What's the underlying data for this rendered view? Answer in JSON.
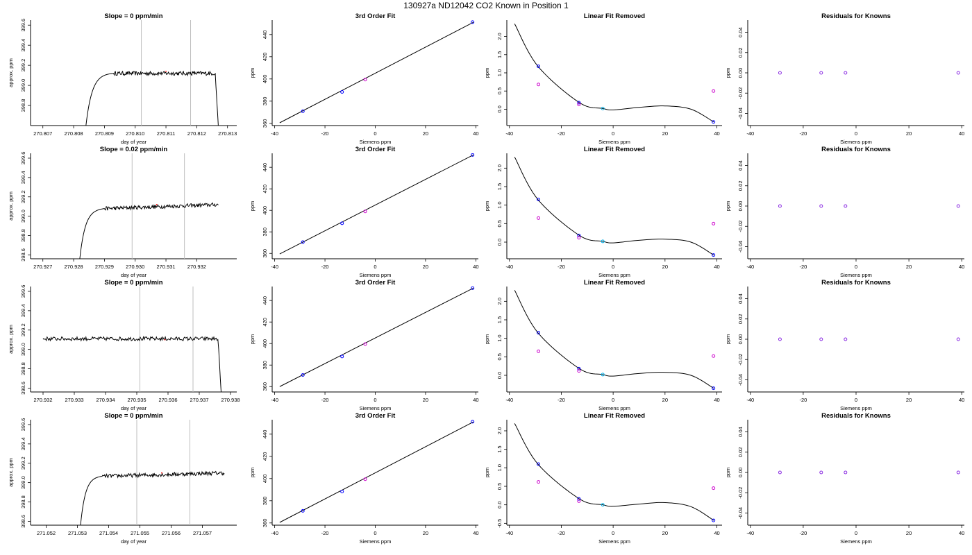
{
  "page_title": "130927a     ND12042   CO2 Known in Position  1",
  "colors": {
    "line": "#000000",
    "vline": "#bebebe",
    "blue": "#0000ff",
    "magenta": "#cc00cc",
    "cyan": "#00b0e8",
    "purple": "#8a2be2",
    "red": "#ff0000"
  },
  "chart_data": [
    {
      "type": "line",
      "row": 0,
      "title": "Slope =  0  ppm/min",
      "xlabel": "day of year",
      "ylabel": "approx. ppm",
      "xlim": [
        270.8066,
        270.8133
      ],
      "ylim": [
        398.6,
        399.65
      ],
      "xticks": [
        "270.807",
        "270.808",
        "270.809",
        "270.810",
        "270.811",
        "270.812",
        "270.813"
      ],
      "yticks": [
        "398.8",
        "399.0",
        "399.2",
        "399.4",
        "399.6"
      ],
      "vlines": [
        270.8102,
        270.8118
      ],
      "red_point": [
        270.811,
        399.14
      ],
      "series": [
        {
          "x_start": 270.8084,
          "x_end": 270.8127,
          "rise_end": 270.8093,
          "drop_start": 270.8126,
          "start_value": 398.6,
          "plateau": 399.12,
          "drop_to": 398.6,
          "noise": 0.02
        }
      ]
    },
    {
      "type": "scatter",
      "row": 0,
      "title": "3rd Order Fit",
      "xlabel": "Siemens ppm",
      "ylabel": "ppm",
      "xlim": [
        -41,
        41
      ],
      "ylim": [
        358,
        453
      ],
      "xticks": [
        "-40",
        "-20",
        "0",
        "20",
        "40"
      ],
      "yticks": [
        "360",
        "380",
        "400",
        "420",
        "440"
      ],
      "line": [
        [
          -38,
          360.5
        ],
        [
          39,
          451
        ]
      ],
      "points": [
        [
          -28.8,
          370.9,
          "blue"
        ],
        [
          -13.2,
          388.3,
          "blue"
        ],
        [
          -4,
          399.4,
          "magenta"
        ],
        [
          38.7,
          451.2,
          "blue"
        ]
      ]
    },
    {
      "type": "scatter",
      "row": 0,
      "title": "Linear Fit Removed",
      "xlabel": "Siemens ppm",
      "ylabel": "ppm",
      "xlim": [
        -41,
        42
      ],
      "ylim": [
        -0.45,
        2.45
      ],
      "xticks": [
        "-40",
        "-20",
        "0",
        "20",
        "40"
      ],
      "yticks": [
        "0.0",
        "0.5",
        "1.0",
        "1.5",
        "2.0"
      ],
      "curve": {
        "x": [
          -38,
          -29,
          -13,
          -4,
          0,
          10,
          20,
          30,
          38.8
        ],
        "y": [
          2.35,
          1.18,
          0.18,
          0.02,
          -0.02,
          0.05,
          0.09,
          0.0,
          -0.35
        ]
      },
      "points": [
        [
          -28.8,
          1.18,
          "blue"
        ],
        [
          -28.8,
          0.68,
          "magenta"
        ],
        [
          -13.2,
          0.18,
          "blue"
        ],
        [
          -13.2,
          0.13,
          "magenta"
        ],
        [
          -4,
          0.02,
          "cyan"
        ],
        [
          38.7,
          -0.35,
          "blue"
        ],
        [
          38.7,
          0.5,
          "magenta"
        ]
      ]
    },
    {
      "type": "scatter",
      "row": 0,
      "title": "Residuals for Knowns",
      "xlabel": "Siemens ppm",
      "ylabel": "ppm",
      "xlim": [
        -41,
        41
      ],
      "ylim": [
        -0.052,
        0.052
      ],
      "xticks": [
        "-40",
        "-20",
        "0",
        "20",
        "40"
      ],
      "yticks": [
        "-0.04",
        "-0.02",
        "0.00",
        "0.02",
        "0.04"
      ],
      "points": [
        [
          -28.8,
          0,
          "purple"
        ],
        [
          -13.2,
          0,
          "purple"
        ],
        [
          -4,
          0,
          "purple"
        ],
        [
          38.7,
          0,
          "purple"
        ]
      ]
    },
    {
      "type": "line",
      "row": 1,
      "title": "Slope =  0.02  ppm/min",
      "xlabel": "day of year",
      "ylabel": "approx. ppm",
      "xlim": [
        270.9266,
        270.9333
      ],
      "ylim": [
        398.56,
        399.65
      ],
      "xticks": [
        "270.927",
        "270.928",
        "270.929",
        "270.930",
        "270.931",
        "270.932"
      ],
      "yticks": [
        "398.6",
        "398.8",
        "399.0",
        "399.2",
        "399.4",
        "399.6"
      ],
      "vlines": [
        270.9299,
        270.9316
      ],
      "red_point": [
        270.9307,
        399.12
      ],
      "series": [
        {
          "x_start": 270.9282,
          "x_end": 270.9327,
          "rise_end": 270.929,
          "drop_start": 270.9328,
          "start_value": 398.56,
          "plateau": 399.07,
          "trend": 0.05,
          "drop_to": 399.1,
          "noise": 0.02
        }
      ]
    },
    {
      "type": "scatter",
      "row": 1,
      "title": "3rd Order Fit",
      "xlabel": "Siemens ppm",
      "ylabel": "ppm",
      "xlim": [
        -41,
        41
      ],
      "ylim": [
        355,
        453
      ],
      "xticks": [
        "-40",
        "-20",
        "0",
        "20",
        "40"
      ],
      "yticks": [
        "360",
        "380",
        "400",
        "420",
        "440"
      ],
      "line": [
        [
          -38,
          359.5
        ],
        [
          39,
          451.5
        ]
      ],
      "points": [
        [
          -28.8,
          370.5,
          "blue"
        ],
        [
          -13.2,
          388,
          "blue"
        ],
        [
          -4,
          399,
          "magenta"
        ],
        [
          38.7,
          451.5,
          "blue"
        ]
      ]
    },
    {
      "type": "scatter",
      "row": 1,
      "title": "Linear Fit Removed",
      "xlabel": "Siemens ppm",
      "ylabel": "ppm",
      "xlim": [
        -41,
        42
      ],
      "ylim": [
        -0.45,
        2.4
      ],
      "xticks": [
        "-40",
        "-20",
        "0",
        "20",
        "40"
      ],
      "yticks": [
        "0.0",
        "0.5",
        "1.0",
        "1.5",
        "2.0"
      ],
      "curve": {
        "x": [
          -38,
          -29,
          -13,
          -4,
          0,
          10,
          20,
          30,
          38.8
        ],
        "y": [
          2.3,
          1.15,
          0.18,
          0.02,
          -0.02,
          0.05,
          0.08,
          0.0,
          -0.35
        ]
      },
      "points": [
        [
          -28.8,
          1.15,
          "blue"
        ],
        [
          -28.8,
          0.65,
          "magenta"
        ],
        [
          -13.2,
          0.18,
          "blue"
        ],
        [
          -13.2,
          0.12,
          "magenta"
        ],
        [
          -4,
          0.02,
          "cyan"
        ],
        [
          38.7,
          -0.35,
          "blue"
        ],
        [
          38.7,
          0.5,
          "magenta"
        ]
      ]
    },
    {
      "type": "scatter",
      "row": 1,
      "title": "Residuals for Knowns",
      "xlabel": "Siemens ppm",
      "ylabel": "ppm",
      "xlim": [
        -41,
        41
      ],
      "ylim": [
        -0.052,
        0.052
      ],
      "xticks": [
        "-40",
        "-20",
        "0",
        "20",
        "40"
      ],
      "yticks": [
        "-0.04",
        "-0.02",
        "0.00",
        "0.02",
        "0.04"
      ],
      "points": [
        [
          -28.8,
          0,
          "purple"
        ],
        [
          -13.2,
          0,
          "purple"
        ],
        [
          -4,
          0,
          "purple"
        ],
        [
          38.7,
          0,
          "purple"
        ]
      ]
    },
    {
      "type": "line",
      "row": 2,
      "title": "Slope =  0  ppm/min",
      "xlabel": "day of year",
      "ylabel": "approx. ppm",
      "xlim": [
        270.9316,
        270.9382
      ],
      "ylim": [
        398.56,
        399.65
      ],
      "xticks": [
        "270.932",
        "270.933",
        "270.934",
        "270.935",
        "270.936",
        "270.937",
        "270.938"
      ],
      "yticks": [
        "398.6",
        "398.8",
        "399.0",
        "399.2",
        "399.4",
        "399.6"
      ],
      "vlines": [
        270.9351,
        270.9368
      ],
      "red_point": [
        270.9359,
        399.1
      ],
      "series": [
        {
          "x_start": 270.932,
          "x_end": 270.9377,
          "rise_end": 270.932,
          "drop_start": 270.9376,
          "start_value": 399.12,
          "plateau": 399.11,
          "drop_to": 398.56,
          "noise": 0.02
        }
      ]
    },
    {
      "type": "scatter",
      "row": 2,
      "title": "3rd Order Fit",
      "xlabel": "Siemens ppm",
      "ylabel": "ppm",
      "xlim": [
        -41,
        41
      ],
      "ylim": [
        355,
        453
      ],
      "xticks": [
        "-40",
        "-20",
        "0",
        "20",
        "40"
      ],
      "yticks": [
        "360",
        "380",
        "400",
        "420",
        "440"
      ],
      "line": [
        [
          -38,
          360
        ],
        [
          39,
          451.5
        ]
      ],
      "points": [
        [
          -28.8,
          370.8,
          "blue"
        ],
        [
          -13.2,
          388,
          "blue"
        ],
        [
          -4,
          399.5,
          "magenta"
        ],
        [
          38.7,
          451.5,
          "blue"
        ]
      ]
    },
    {
      "type": "scatter",
      "row": 2,
      "title": "Linear Fit Removed",
      "xlabel": "Siemens ppm",
      "ylabel": "ppm",
      "xlim": [
        -41,
        42
      ],
      "ylim": [
        -0.45,
        2.4
      ],
      "xticks": [
        "-40",
        "-20",
        "0",
        "20",
        "40"
      ],
      "yticks": [
        "0.0",
        "0.5",
        "1.0",
        "1.5",
        "2.0"
      ],
      "curve": {
        "x": [
          -38,
          -29,
          -13,
          -4,
          0,
          10,
          20,
          30,
          38.8
        ],
        "y": [
          2.3,
          1.15,
          0.18,
          0.02,
          -0.02,
          0.05,
          0.08,
          0.0,
          -0.35
        ]
      },
      "points": [
        [
          -28.8,
          1.15,
          "blue"
        ],
        [
          -28.8,
          0.65,
          "magenta"
        ],
        [
          -13.2,
          0.18,
          "blue"
        ],
        [
          -13.2,
          0.12,
          "magenta"
        ],
        [
          -4,
          0.02,
          "cyan"
        ],
        [
          38.7,
          -0.35,
          "blue"
        ],
        [
          38.7,
          0.52,
          "magenta"
        ]
      ]
    },
    {
      "type": "scatter",
      "row": 2,
      "title": "Residuals for Knowns",
      "xlabel": "Siemens ppm",
      "ylabel": "ppm",
      "xlim": [
        -41,
        41
      ],
      "ylim": [
        -0.052,
        0.052
      ],
      "xticks": [
        "-40",
        "-20",
        "0",
        "20",
        "40"
      ],
      "yticks": [
        "-0.04",
        "-0.02",
        "0.00",
        "0.02",
        "0.04"
      ],
      "points": [
        [
          -28.8,
          0,
          "purple"
        ],
        [
          -13.2,
          0,
          "purple"
        ],
        [
          -4,
          0,
          "purple"
        ],
        [
          38.7,
          0,
          "purple"
        ]
      ]
    },
    {
      "type": "line",
      "row": 3,
      "title": "Slope =  0  ppm/min",
      "xlabel": "day of year",
      "ylabel": "approx. ppm",
      "xlim": [
        271.0515,
        271.0581
      ],
      "ylim": [
        398.56,
        399.65
      ],
      "xticks": [
        "271.052",
        "271.053",
        "271.054",
        "271.055",
        "271.056",
        "271.057"
      ],
      "yticks": [
        "398.6",
        "398.8",
        "399.0",
        "399.2",
        "399.4",
        "399.6"
      ],
      "vlines": [
        271.0549,
        271.0566
      ],
      "red_point": [
        271.0557,
        399.1
      ],
      "series": [
        {
          "x_start": 271.0531,
          "x_end": 271.0577,
          "rise_end": 271.0538,
          "drop_start": 271.0578,
          "start_value": 398.56,
          "plateau": 399.06,
          "trend": 0.04,
          "drop_to": 399.1,
          "noise": 0.02
        }
      ]
    },
    {
      "type": "scatter",
      "row": 3,
      "title": "3rd Order Fit",
      "xlabel": "Siemens ppm",
      "ylabel": "ppm",
      "xlim": [
        -41,
        41
      ],
      "ylim": [
        358,
        453
      ],
      "xticks": [
        "-40",
        "-20",
        "0",
        "20",
        "40"
      ],
      "yticks": [
        "360",
        "380",
        "400",
        "420",
        "440"
      ],
      "line": [
        [
          -38,
          360.5
        ],
        [
          39,
          451
        ]
      ],
      "points": [
        [
          -28.8,
          370.9,
          "blue"
        ],
        [
          -13.2,
          388.3,
          "blue"
        ],
        [
          -4,
          399.4,
          "magenta"
        ],
        [
          38.7,
          451.2,
          "blue"
        ]
      ]
    },
    {
      "type": "scatter",
      "row": 3,
      "title": "Linear Fit Removed",
      "xlabel": "Siemens ppm",
      "ylabel": "ppm",
      "xlim": [
        -41,
        42
      ],
      "ylim": [
        -0.55,
        2.3
      ],
      "xticks": [
        "-40",
        "-20",
        "0",
        "20",
        "40"
      ],
      "yticks": [
        "-0.5",
        "0.0",
        "0.5",
        "1.0",
        "1.5",
        "2.0"
      ],
      "curve": {
        "x": [
          -38,
          -29,
          -13,
          -4,
          0,
          10,
          20,
          30,
          38.8
        ],
        "y": [
          2.2,
          1.1,
          0.16,
          0.0,
          -0.04,
          0.02,
          0.06,
          -0.05,
          -0.42
        ]
      },
      "points": [
        [
          -28.8,
          1.1,
          "blue"
        ],
        [
          -28.8,
          0.62,
          "magenta"
        ],
        [
          -13.2,
          0.16,
          "blue"
        ],
        [
          -13.2,
          0.1,
          "magenta"
        ],
        [
          -4,
          0.0,
          "cyan"
        ],
        [
          38.7,
          -0.42,
          "blue"
        ],
        [
          38.7,
          0.45,
          "magenta"
        ]
      ]
    },
    {
      "type": "scatter",
      "row": 3,
      "title": "Residuals for Knowns",
      "xlabel": "Siemens ppm",
      "ylabel": "ppm",
      "xlim": [
        -41,
        41
      ],
      "ylim": [
        -0.052,
        0.052
      ],
      "xticks": [
        "-40",
        "-20",
        "0",
        "20",
        "40"
      ],
      "yticks": [
        "-0.04",
        "-0.02",
        "0.00",
        "0.02",
        "0.04"
      ],
      "points": [
        [
          -28.8,
          0,
          "purple"
        ],
        [
          -13.2,
          0,
          "purple"
        ],
        [
          -4,
          0,
          "purple"
        ],
        [
          38.7,
          0,
          "purple"
        ]
      ]
    }
  ]
}
